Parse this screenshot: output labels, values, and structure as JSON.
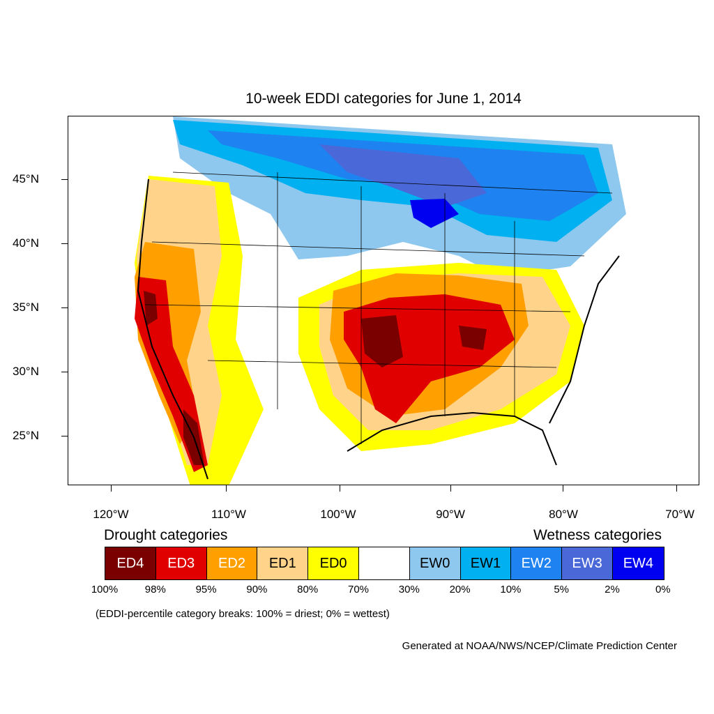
{
  "title": "10-week EDDI categories for June 1, 2014",
  "axes": {
    "lat_labels": [
      "45°N",
      "40°N",
      "35°N",
      "30°N",
      "25°N"
    ],
    "lon_labels": [
      "120°W",
      "110°W",
      "100°W",
      "90°W",
      "80°W",
      "70°W"
    ]
  },
  "legend": {
    "drought_heading": "Drought categories",
    "wetness_heading": "Wetness categories",
    "categories": [
      {
        "label": "ED4",
        "color": "#7a0000",
        "text_color": "#ffffff"
      },
      {
        "label": "ED3",
        "color": "#e00000",
        "text_color": "#ffffff"
      },
      {
        "label": "ED2",
        "color": "#ffa000",
        "text_color": "#ffffff"
      },
      {
        "label": "ED1",
        "color": "#ffd38a",
        "text_color": "#000000"
      },
      {
        "label": "ED0",
        "color": "#ffff00",
        "text_color": "#000000"
      },
      {
        "label": "",
        "color": "#ffffff",
        "text_color": "#000000"
      },
      {
        "label": "EW0",
        "color": "#8ec8ee",
        "text_color": "#000000"
      },
      {
        "label": "EW1",
        "color": "#00b0f0",
        "text_color": "#000000"
      },
      {
        "label": "EW2",
        "color": "#1e82f0",
        "text_color": "#ffffff"
      },
      {
        "label": "EW3",
        "color": "#4a68d8",
        "text_color": "#ffffff"
      },
      {
        "label": "EW4",
        "color": "#0000f0",
        "text_color": "#ffffff"
      }
    ],
    "percent_breaks": [
      "100%",
      "98%",
      "95%",
      "90%",
      "80%",
      "70%",
      "30%",
      "20%",
      "10%",
      "5%",
      "2%",
      "0%"
    ]
  },
  "breaks_note": "(EDDI-percentile category breaks: 100% = driest; 0% = wettest)",
  "credit": "Generated at NOAA/NWS/NCEP/Climate Prediction Center"
}
